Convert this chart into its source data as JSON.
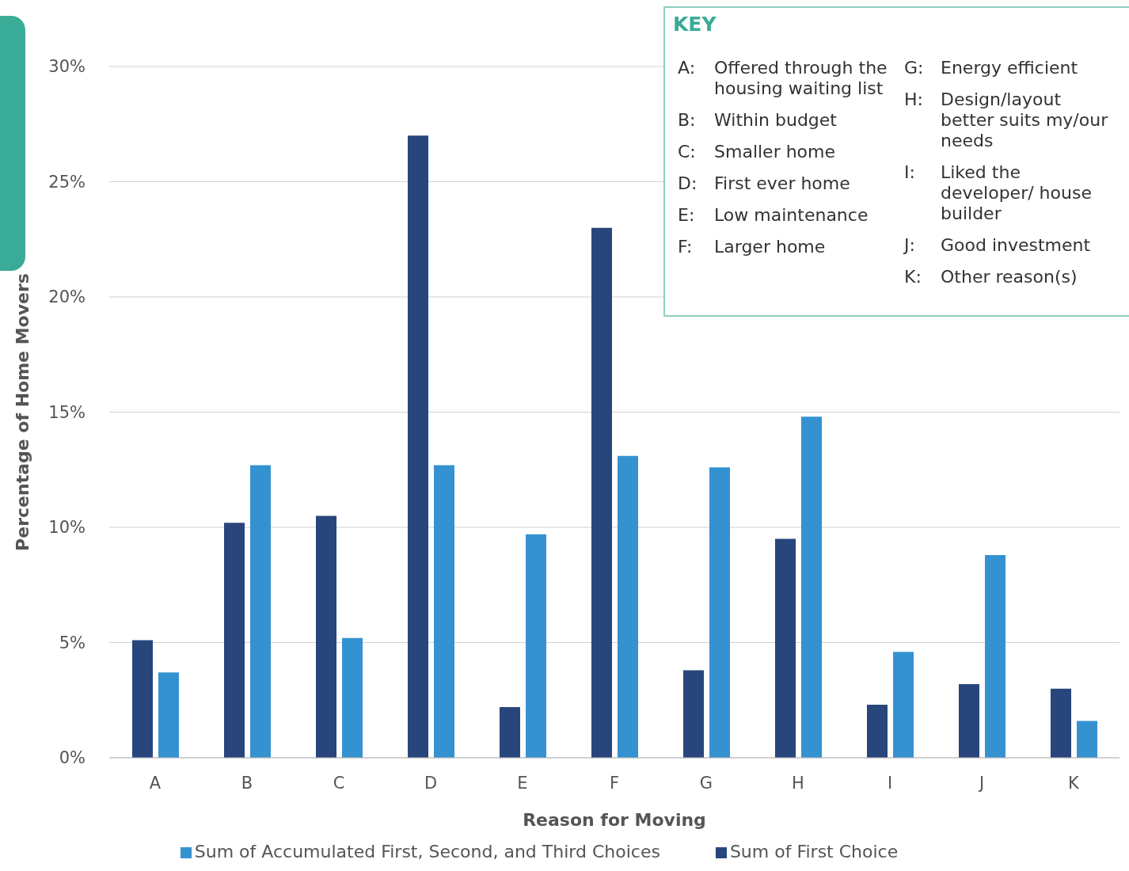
{
  "chart_data": {
    "type": "bar",
    "xlabel": "Reason for Moving",
    "ylabel": "Percentage of Home Movers",
    "categories": [
      "A",
      "B",
      "C",
      "D",
      "E",
      "F",
      "G",
      "H",
      "I",
      "J",
      "K"
    ],
    "series": [
      {
        "name": "Sum of First Choice",
        "color": "#28467c",
        "values": [
          5.1,
          10.2,
          10.5,
          27.0,
          2.2,
          23.0,
          3.8,
          9.5,
          2.3,
          3.2,
          3.0
        ]
      },
      {
        "name": "Sum of Accumulated First, Second, and Third Choices",
        "color": "#3592d0",
        "values": [
          3.7,
          12.7,
          5.2,
          12.7,
          9.7,
          13.1,
          12.6,
          14.8,
          4.6,
          8.8,
          1.6
        ]
      }
    ],
    "ylim": [
      0,
      30
    ],
    "yticks": [
      {
        "value": 0,
        "label": "0%"
      },
      {
        "value": 5,
        "label": "5%"
      },
      {
        "value": 10,
        "label": "10%"
      },
      {
        "value": 15,
        "label": "15%"
      },
      {
        "value": 20,
        "label": "20%"
      },
      {
        "value": 25,
        "label": "25%"
      },
      {
        "value": 30,
        "label": "30%"
      }
    ],
    "grid": "y",
    "legend": "bottom",
    "legend_title": "KEY",
    "annotations": [
      "A: Offered through the housing waiting list",
      "B: Within budget",
      "C: Smaller home",
      "D: First ever home",
      "E: Low maintenance",
      "F: Larger home",
      "G: Energy efficient",
      "H: Design/layout better suits my/our needs",
      "I: Liked the developer/ house builder",
      "J: Good investment",
      "K: Other reason(s)"
    ]
  }
}
